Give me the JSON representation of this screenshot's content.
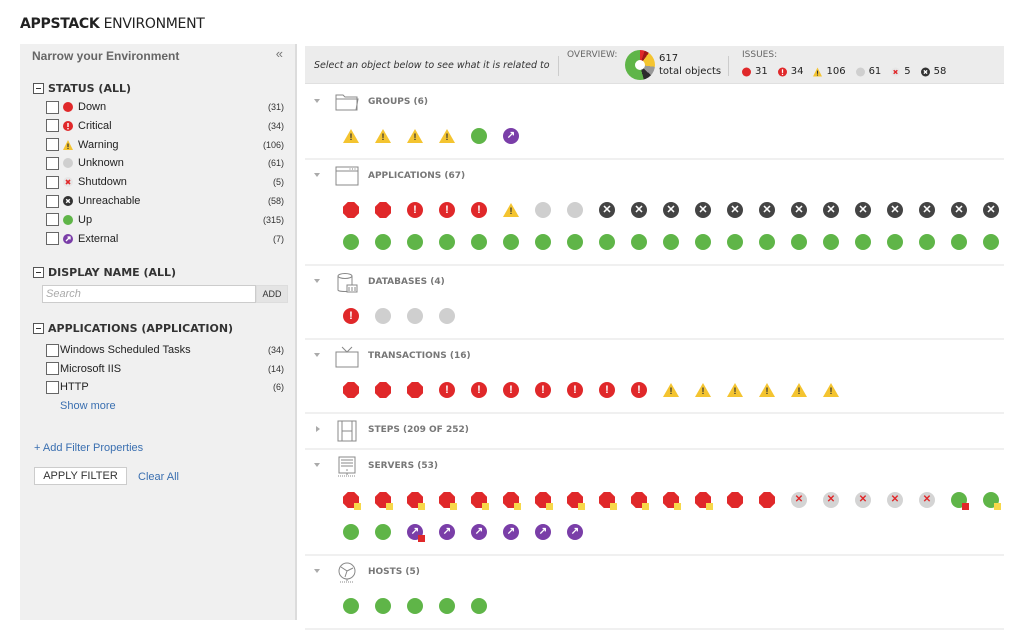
{
  "page": {
    "title_bold": "APPSTACK",
    "title_rest": " ENVIRONMENT"
  },
  "sidebar": {
    "header": "Narrow your Environment",
    "collapse_icon": "«",
    "status": {
      "title": "STATUS (ALL)",
      "items": [
        {
          "label": "Down",
          "count": "(31)",
          "icon": "down"
        },
        {
          "label": "Critical",
          "count": "(34)",
          "icon": "critical"
        },
        {
          "label": "Warning",
          "count": "(106)",
          "icon": "warning"
        },
        {
          "label": "Unknown",
          "count": "(61)",
          "icon": "unknown"
        },
        {
          "label": "Shutdown",
          "count": "(5)",
          "icon": "shutdown"
        },
        {
          "label": "Unreachable",
          "count": "(58)",
          "icon": "unreach"
        },
        {
          "label": "Up",
          "count": "(315)",
          "icon": "up"
        },
        {
          "label": "External",
          "count": "(7)",
          "icon": "external"
        }
      ]
    },
    "display_name": {
      "title": "DISPLAY NAME (ALL)",
      "search_placeholder": "Search",
      "search_value": "",
      "add_label": "ADD"
    },
    "applications": {
      "title": "APPLICATIONS (APPLICATION)",
      "items": [
        {
          "label": "Windows Scheduled Tasks",
          "count": "(34)"
        },
        {
          "label": "Microsoft IIS",
          "count": "(14)"
        },
        {
          "label": "HTTP",
          "count": "(6)"
        }
      ],
      "show_more": "Show more"
    },
    "add_filter": "+ Add Filter Properties",
    "apply_filter": "APPLY FILTER",
    "clear_all": "Clear All"
  },
  "toolbar": {
    "hint": "Select an object below to see what it is related to",
    "overview_label": "OVERVIEW:",
    "total_count": "617",
    "total_label": "total objects",
    "issues_label": "ISSUES:",
    "issues": [
      {
        "icon": "down",
        "count": "31"
      },
      {
        "icon": "critical",
        "count": "34"
      },
      {
        "icon": "warning",
        "count": "106"
      },
      {
        "icon": "unknown",
        "count": "61"
      },
      {
        "icon": "shutdown",
        "count": "5"
      },
      {
        "icon": "unreach",
        "count": "58"
      }
    ],
    "pie_colors": {
      "down": "#e0282a",
      "critical": "#a01818",
      "warning": "#f4c430",
      "unknown": "#999999",
      "unreachable": "#2c2c2c",
      "up": "#5fb548"
    }
  },
  "sections": [
    {
      "label": "GROUPS (6)",
      "icon": "folder",
      "expanded": true,
      "rows": [
        [
          "warning",
          "warning",
          "warning",
          "warning",
          "up",
          "external"
        ]
      ]
    },
    {
      "label": "APPLICATIONS (67)",
      "icon": "window",
      "expanded": true,
      "rows": [
        [
          "down",
          "down",
          "critical",
          "critical",
          "critical",
          "warning",
          "unknown",
          "unknown",
          "unreach",
          "unreach",
          "unreach",
          "unreach",
          "unreach",
          "unreach",
          "unreach",
          "unreach",
          "unreach",
          "unreach",
          "unreach",
          "unreach",
          "unreach"
        ],
        [
          "up",
          "up",
          "up",
          "up",
          "up",
          "up",
          "up",
          "up",
          "up",
          "up",
          "up",
          "up",
          "up",
          "up",
          "up",
          "up",
          "up",
          "up",
          "up",
          "up",
          "up"
        ]
      ]
    },
    {
      "label": "DATABASES (4)",
      "icon": "database",
      "expanded": true,
      "rows": [
        [
          "critical",
          "unknown",
          "unknown",
          "unknown"
        ]
      ]
    },
    {
      "label": "TRANSACTIONS (16)",
      "icon": "tv",
      "expanded": true,
      "rows": [
        [
          "down",
          "down",
          "down",
          "critical",
          "critical",
          "critical",
          "critical",
          "critical",
          "critical",
          "critical",
          "warning",
          "warning",
          "warning",
          "warning",
          "warning",
          "warning"
        ]
      ]
    },
    {
      "label": "STEPS (209 OF 252)",
      "icon": "film",
      "expanded": false,
      "rows": []
    },
    {
      "label": "SERVERS (53)",
      "icon": "server",
      "expanded": true,
      "rows": [
        [
          "down:y",
          "down:y",
          "down:y",
          "down:y",
          "down:y",
          "down:y",
          "down:y",
          "down:y",
          "down:y",
          "down:y",
          "down:y",
          "down:y",
          "down",
          "down",
          "shutdown",
          "shutdown",
          "shutdown",
          "shutdown",
          "shutdown",
          "up:r",
          "up:y"
        ],
        [
          "up",
          "up",
          "external:r",
          "external",
          "external",
          "external",
          "external",
          "external"
        ]
      ]
    },
    {
      "label": "HOSTS (5)",
      "icon": "globe",
      "expanded": true,
      "rows": [
        [
          "up",
          "up",
          "up",
          "up",
          "up"
        ]
      ]
    }
  ]
}
